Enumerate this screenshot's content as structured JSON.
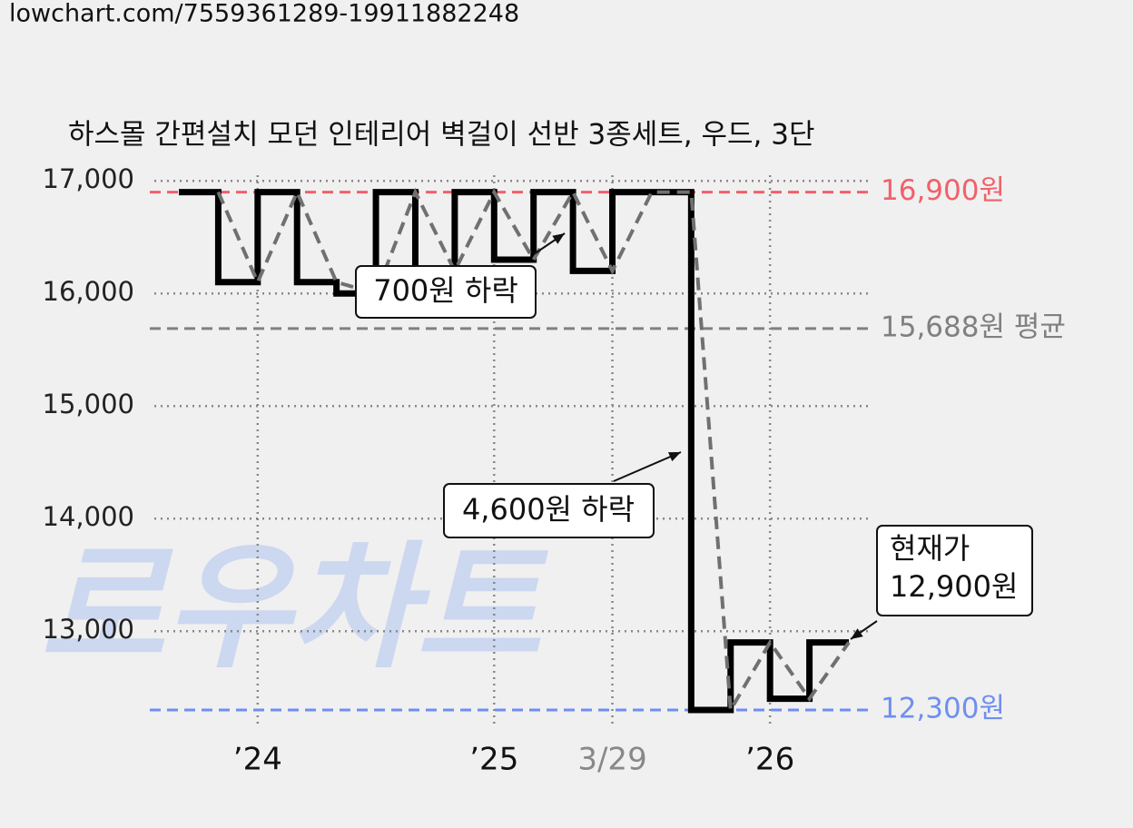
{
  "source_url": "lowchart.com/7559361289-19911882248",
  "watermark": "로우차트",
  "chart_data": {
    "type": "step",
    "title": "하스몰 간편설치 모던 인테리어 벽걸이 선반 3종세트, 우드, 3단",
    "categories": [
      null,
      null,
      "’24",
      null,
      null,
      null,
      null,
      null,
      "’25",
      null,
      null,
      "3/29",
      null,
      null,
      null,
      "’26",
      null,
      null
    ],
    "series": [
      {
        "color": "#000000",
        "values": [
          16900,
          16100,
          16900,
          16100,
          16000,
          16900,
          16200,
          16900,
          16300,
          16900,
          16200,
          16900,
          16900,
          12300,
          12900,
          12400,
          12900,
          12900
        ]
      },
      {
        "color": "#707070",
        "dashed": true,
        "values": [
          null,
          16900,
          16100,
          16900,
          16100,
          16000,
          16900,
          16200,
          16900,
          16300,
          16900,
          16200,
          16900,
          16900,
          12300,
          12900,
          12400,
          12900
        ]
      }
    ],
    "ylim": [
      12150,
      17050
    ],
    "yticks": [
      {
        "value": 13000,
        "label": "13,000"
      },
      {
        "value": 14000,
        "label": "14,000"
      },
      {
        "value": 15000,
        "label": "15,000"
      },
      {
        "value": 16000,
        "label": "16,000"
      },
      {
        "value": 17000,
        "label": "17,000"
      }
    ],
    "grid": true,
    "reference_lines": [
      {
        "value": 16900,
        "label": "16,900원",
        "color": "#f0616a"
      },
      {
        "value": 15688,
        "label": "15,688원 평균",
        "color": "#808080"
      },
      {
        "value": 12300,
        "label": "12,300원",
        "color": "#6f8ff0"
      }
    ],
    "annotations": [
      {
        "text": "700원 하락"
      },
      {
        "text": "4,600원 하락"
      },
      {
        "text": [
          "현재가",
          "12,900원"
        ]
      }
    ]
  }
}
